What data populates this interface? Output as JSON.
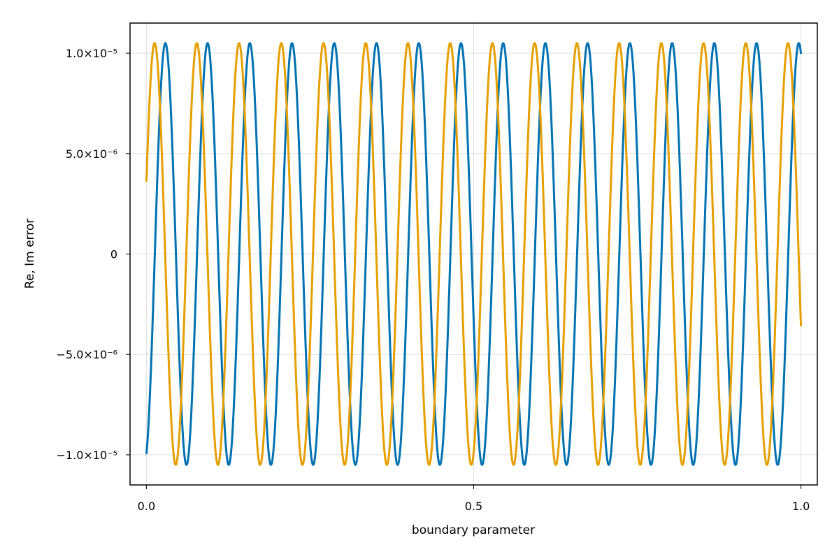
{
  "chart_data": {
    "type": "line",
    "title": "",
    "xlabel": "boundary parameter",
    "ylabel": "Re, Im error",
    "xlim": [
      -0.025,
      1.025
    ],
    "ylim": [
      -1.15e-05,
      1.15e-05
    ],
    "x_ticks": [
      {
        "value": 0.0,
        "label": "0.0"
      },
      {
        "value": 0.5,
        "label": "0.5"
      },
      {
        "value": 1.0,
        "label": "1.0"
      }
    ],
    "y_ticks": [
      {
        "value": -1e-05,
        "label": "−1.0×10⁻⁵"
      },
      {
        "value": -5e-06,
        "label": "−5.0×10⁻⁶"
      },
      {
        "value": 0,
        "label": "0"
      },
      {
        "value": 5e-06,
        "label": "5.0×10⁻⁶"
      },
      {
        "value": 1e-05,
        "label": "1.0×10⁻⁵"
      }
    ],
    "grid": true,
    "legend": "none",
    "series": [
      {
        "color": "#0072b2",
        "function": "amplitude * sin(2*pi*frequency*x + phase)",
        "amplitude": 1.05e-05,
        "frequency": 15.5,
        "phase": -1.25,
        "x_range": [
          0,
          1
        ]
      },
      {
        "color": "#e69f00",
        "function": "amplitude * sin(2*pi*frequency*x + phase)",
        "amplitude": 1.05e-05,
        "frequency": 15.5,
        "phase": 0.35,
        "x_range": [
          0,
          1
        ]
      }
    ]
  }
}
